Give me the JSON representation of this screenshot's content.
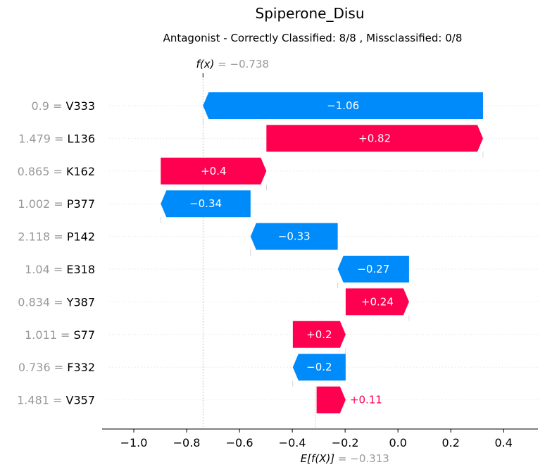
{
  "chart_data": {
    "type": "waterfall",
    "title": "Spiperone_Disu",
    "subtitle": "Antagonist - Correctly Classified: 8/8 , Missclassified: 0/8",
    "fx": {
      "label": "f(x)",
      "eq": " = ",
      "value": "−0.738",
      "x": -0.738
    },
    "base": {
      "label": "E[f(X)]",
      "eq": " = ",
      "value": "−0.313",
      "x": -0.313
    },
    "xlim": [
      -1.12,
      0.53
    ],
    "xticks": [
      -1.0,
      -0.8,
      -0.6,
      -0.4,
      -0.2,
      0.0,
      0.2,
      0.4
    ],
    "xtick_labels": [
      "−1.0",
      "−0.8",
      "−0.6",
      "−0.4",
      "−0.2",
      "0.0",
      "0.2",
      "0.4"
    ],
    "colors": {
      "positive": "#ff0051",
      "negative": "#008bfb",
      "label_value": "#999999"
    },
    "features": [
      {
        "value": "0.9",
        "name": "V333",
        "start": 0.322,
        "end": -0.738,
        "label": "−1.06",
        "sign": "neg"
      },
      {
        "value": "1.479",
        "name": "L136",
        "start": -0.498,
        "end": 0.322,
        "label": "+0.82",
        "sign": "pos"
      },
      {
        "value": "0.865",
        "name": "K162",
        "start": -0.898,
        "end": -0.498,
        "label": "+0.4",
        "sign": "pos"
      },
      {
        "value": "1.002",
        "name": "P377",
        "start": -0.558,
        "end": -0.898,
        "label": "−0.34",
        "sign": "neg"
      },
      {
        "value": "2.118",
        "name": "P142",
        "start": -0.228,
        "end": -0.558,
        "label": "−0.33",
        "sign": "neg"
      },
      {
        "value": "1.04",
        "name": "E318",
        "start": 0.042,
        "end": -0.228,
        "label": "−0.27",
        "sign": "neg"
      },
      {
        "value": "0.834",
        "name": "Y387",
        "start": -0.198,
        "end": 0.042,
        "label": "+0.24",
        "sign": "pos"
      },
      {
        "value": "1.011",
        "name": "S77",
        "start": -0.398,
        "end": -0.198,
        "label": "+0.2",
        "sign": "pos"
      },
      {
        "value": "0.736",
        "name": "F332",
        "start": -0.198,
        "end": -0.398,
        "label": "−0.2",
        "sign": "neg"
      },
      {
        "value": "1.481",
        "name": "V357",
        "start": -0.308,
        "end": -0.198,
        "label": "+0.11",
        "sign": "pos"
      }
    ]
  }
}
